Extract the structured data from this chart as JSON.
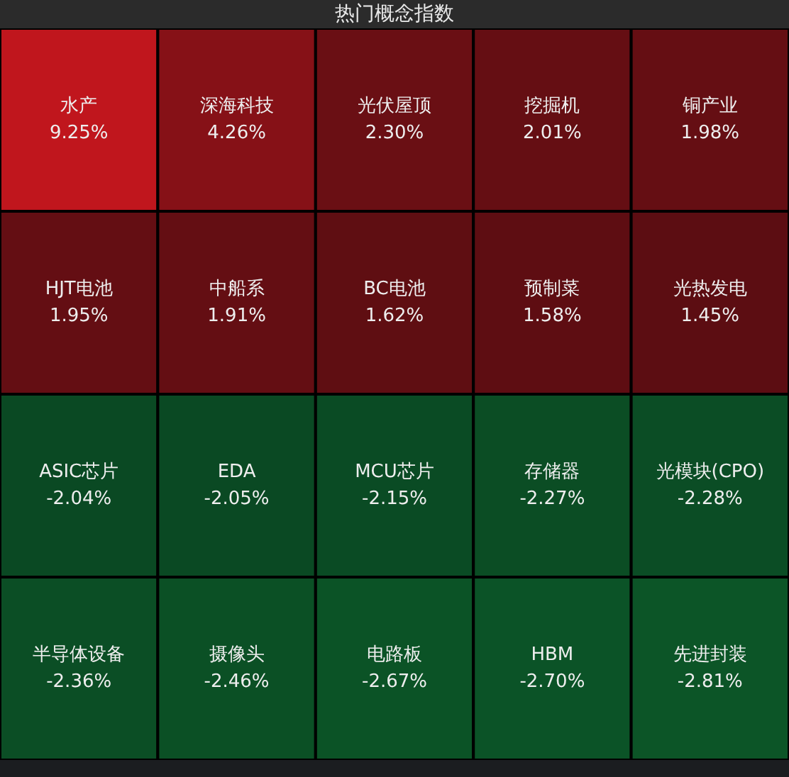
{
  "chart_data": {
    "type": "other",
    "title": "热门概念指数",
    "categories": [
      "水产",
      "深海科技",
      "光伏屋顶",
      "挖掘机",
      "铜产业",
      "HJT电池",
      "中船系",
      "BC电池",
      "预制菜",
      "光热发电",
      "ASIC芯片",
      "EDA",
      "MCU芯片",
      "存储器",
      "光模块(CPO)",
      "半导体设备",
      "摄像头",
      "电路板",
      "HBM",
      "先进封装"
    ],
    "values": [
      9.25,
      4.26,
      2.3,
      2.01,
      1.98,
      1.95,
      1.91,
      1.62,
      1.58,
      1.45,
      -2.04,
      -2.05,
      -2.15,
      -2.27,
      -2.28,
      -2.36,
      -2.46,
      -2.67,
      -2.7,
      -2.81
    ],
    "value_labels": [
      "9.25%",
      "4.26%",
      "2.30%",
      "2.01%",
      "1.98%",
      "1.95%",
      "1.91%",
      "1.62%",
      "1.58%",
      "1.45%",
      "-2.04%",
      "-2.05%",
      "-2.15%",
      "-2.27%",
      "-2.28%",
      "-2.36%",
      "-2.46%",
      "-2.67%",
      "-2.70%",
      "-2.81%"
    ]
  }
}
